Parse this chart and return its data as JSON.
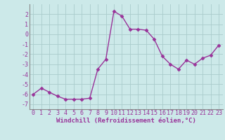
{
  "x": [
    0,
    1,
    2,
    3,
    4,
    5,
    6,
    7,
    8,
    9,
    10,
    11,
    12,
    13,
    14,
    15,
    16,
    17,
    18,
    19,
    20,
    21,
    22,
    23
  ],
  "y": [
    -6.0,
    -5.4,
    -5.8,
    -6.2,
    -6.5,
    -6.5,
    -6.5,
    -6.4,
    -3.5,
    -2.5,
    2.3,
    1.8,
    0.5,
    0.5,
    0.4,
    -0.5,
    -2.2,
    -3.0,
    -3.5,
    -2.6,
    -3.0,
    -2.4,
    -2.1,
    -1.1
  ],
  "line_color": "#993399",
  "marker": "D",
  "markersize": 2.5,
  "linewidth": 1.0,
  "bg_color": "#cce9e9",
  "grid_color": "#aacccc",
  "xlabel": "Windchill (Refroidissement éolien,°C)",
  "xlabel_fontsize": 6.5,
  "tick_fontsize": 6,
  "ylim": [
    -7.5,
    3.0
  ],
  "xlim": [
    -0.5,
    23.5
  ],
  "yticks": [
    -7,
    -6,
    -5,
    -4,
    -3,
    -2,
    -1,
    0,
    1,
    2
  ],
  "xticks": [
    0,
    1,
    2,
    3,
    4,
    5,
    6,
    7,
    8,
    9,
    10,
    11,
    12,
    13,
    14,
    15,
    16,
    17,
    18,
    19,
    20,
    21,
    22,
    23
  ]
}
